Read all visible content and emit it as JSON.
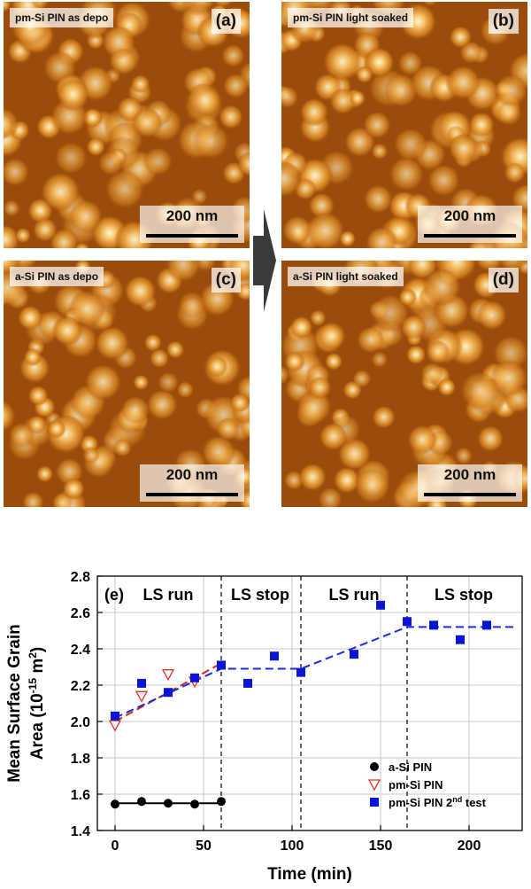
{
  "panels": [
    {
      "id": "a",
      "tag": "pm-Si PIN as depo",
      "letter": "(a)",
      "scale": "200 nm"
    },
    {
      "id": "b",
      "tag": "pm-Si PIN light soaked",
      "letter": "(b)",
      "scale": "200 nm"
    },
    {
      "id": "c",
      "tag": "a-Si PIN as depo",
      "letter": "(c)",
      "scale": "200 nm"
    },
    {
      "id": "d",
      "tag": "a-Si PIN light soaked",
      "letter": "(d)",
      "scale": "200 nm"
    }
  ],
  "chart_data": {
    "type": "scatter",
    "panel_label": "(e)",
    "xlabel": "Time (min)",
    "ylabel_line1": "Mean Surface Grain",
    "ylabel_line2": "Area (10",
    "ylabel_sup": "-15",
    "ylabel_unit": " m",
    "ylabel_unit_sup": "2",
    "ylabel_close": ")",
    "xlim": [
      -10,
      230
    ],
    "ylim": [
      1.4,
      2.8
    ],
    "xticks": [
      0,
      50,
      100,
      150,
      200
    ],
    "yticks": [
      1.4,
      1.6,
      1.8,
      2.0,
      2.2,
      2.4,
      2.6,
      2.8
    ],
    "ytick_labels": [
      "1.4",
      "1.6",
      "1.8",
      "2.0",
      "2.2",
      "2.4",
      "2.6",
      "2.8"
    ],
    "vlines": [
      60,
      105,
      165
    ],
    "region_labels": [
      {
        "text": "LS run",
        "x": 30
      },
      {
        "text": "LS stop",
        "x": 82
      },
      {
        "text": "LS run",
        "x": 135
      },
      {
        "text": "LS stop",
        "x": 197
      }
    ],
    "series": [
      {
        "name": "a-Si PIN",
        "marker": "circle",
        "color": "#000000",
        "x": [
          0,
          15,
          30,
          45,
          60
        ],
        "y": [
          1.545,
          1.56,
          1.55,
          1.545,
          1.56
        ]
      },
      {
        "name": "pm-Si PIN",
        "marker": "triangle-down",
        "color": "#e8321e",
        "x": [
          0,
          15,
          30,
          45
        ],
        "y": [
          1.98,
          2.14,
          2.26,
          2.22
        ]
      },
      {
        "name": "pm-Si PIN 2nd test",
        "legend_pre": "pm-Si PIN 2",
        "legend_sup": "nd",
        "legend_post": " test",
        "marker": "square",
        "color": "#0a14d8",
        "x": [
          0,
          15,
          30,
          45,
          60,
          75,
          90,
          105,
          135,
          150,
          165,
          180,
          195,
          210
        ],
        "y": [
          2.03,
          2.21,
          2.16,
          2.24,
          2.31,
          2.21,
          2.36,
          2.27,
          2.37,
          2.64,
          2.55,
          2.53,
          2.45,
          2.53
        ]
      }
    ],
    "fit_lines": [
      {
        "series": "a-Si PIN",
        "color": "#000000",
        "dash": false,
        "points": [
          [
            0,
            1.55
          ],
          [
            60,
            1.55
          ]
        ]
      },
      {
        "series": "pm-Si PIN",
        "color": "#d0281e",
        "dash": true,
        "points": [
          [
            0,
            2.0
          ],
          [
            60,
            2.32
          ]
        ]
      },
      {
        "series": "pm-Si PIN 2nd test",
        "color": "#1a2ae0",
        "dash": true,
        "points": [
          [
            0,
            2.02
          ],
          [
            60,
            2.29
          ],
          [
            105,
            2.29
          ],
          [
            165,
            2.52
          ],
          [
            225,
            2.52
          ]
        ]
      }
    ]
  }
}
